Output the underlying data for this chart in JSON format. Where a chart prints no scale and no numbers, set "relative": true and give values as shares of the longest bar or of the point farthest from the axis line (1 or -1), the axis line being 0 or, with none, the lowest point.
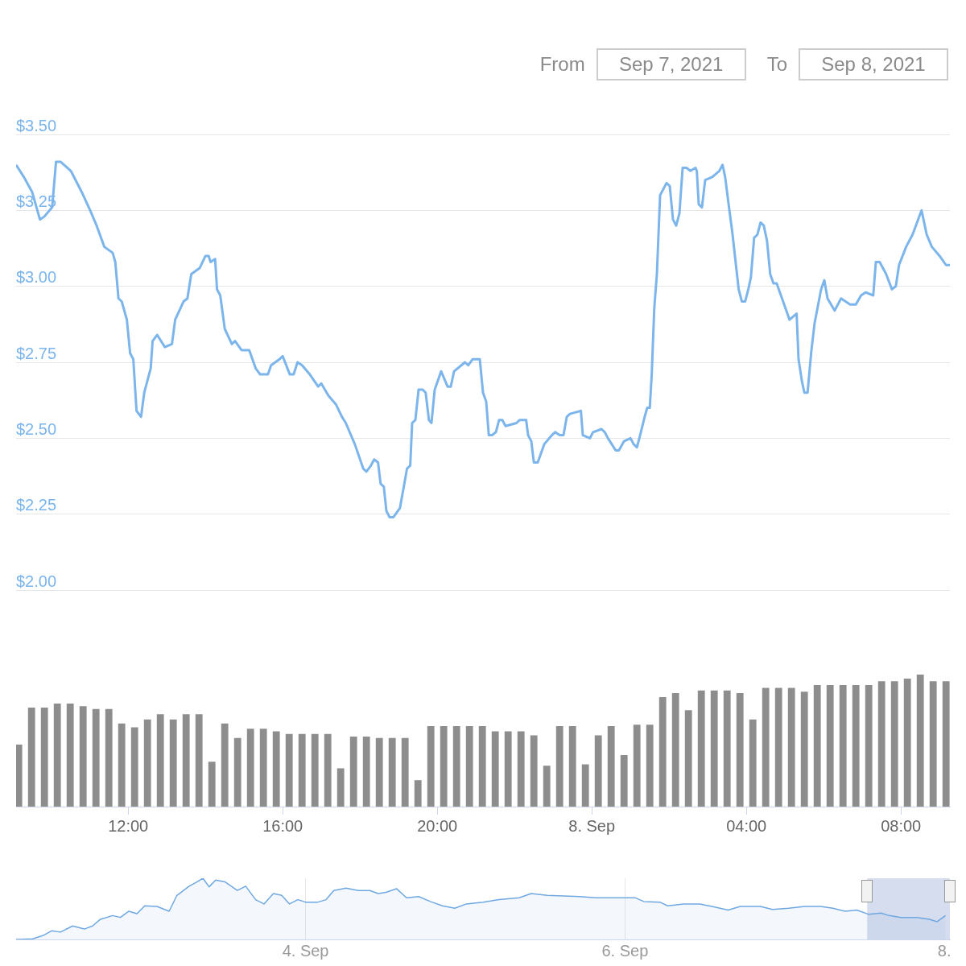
{
  "chart_data": [
    {
      "type": "line",
      "color": "#7cb5ec",
      "ylim": [
        2,
        3.5
      ],
      "xlim": [
        "2021-09-07T09:06",
        "2021-09-08T09:16"
      ],
      "grid": "y",
      "tick_labels": "y",
      "yticks": [
        {
          "value": 2,
          "label": "$2.00"
        },
        {
          "value": 2.25,
          "label": "$2.25"
        },
        {
          "value": 2.5,
          "label": "$2.50"
        },
        {
          "value": 2.75,
          "label": "$2.75"
        },
        {
          "value": 3,
          "label": "$3.00"
        },
        {
          "value": 3.25,
          "label": "$3.25"
        },
        {
          "value": 3.5,
          "label": "$3.50"
        }
      ],
      "annotations": [
        "From",
        "Sep 7, 2021",
        "To",
        "Sep 8, 2021"
      ],
      "x": [
        "2021-09-07T09:06",
        "2021-09-07T09:18",
        "2021-09-07T09:31",
        "2021-09-07T09:43",
        "2021-09-07T09:50",
        "2021-09-07T10:02",
        "2021-09-07T10:08",
        "2021-09-07T10:15",
        "2021-09-07T10:31",
        "2021-09-07T10:48",
        "2021-09-07T11:01",
        "2021-09-07T11:11",
        "2021-09-07T11:23",
        "2021-09-07T11:36",
        "2021-09-07T11:40",
        "2021-09-07T11:45",
        "2021-09-07T11:50",
        "2021-09-07T11:58",
        "2021-09-07T12:03",
        "2021-09-07T12:08",
        "2021-09-07T12:13",
        "2021-09-07T12:20",
        "2021-09-07T12:25",
        "2021-09-07T12:35",
        "2021-09-07T12:38",
        "2021-09-07T12:45",
        "2021-09-07T12:57",
        "2021-09-07T13:08",
        "2021-09-07T13:13",
        "2021-09-07T13:26",
        "2021-09-07T13:32",
        "2021-09-07T13:38",
        "2021-09-07T13:51",
        "2021-09-07T14:00",
        "2021-09-07T14:05",
        "2021-09-07T14:08",
        "2021-09-07T14:15",
        "2021-09-07T14:18",
        "2021-09-07T14:23",
        "2021-09-07T14:30",
        "2021-09-07T14:41",
        "2021-09-07T14:46",
        "2021-09-07T14:56",
        "2021-09-07T15:08",
        "2021-09-07T15:18",
        "2021-09-07T15:25",
        "2021-09-07T15:37",
        "2021-09-07T15:42",
        "2021-09-07T15:55",
        "2021-09-07T16:00",
        "2021-09-07T16:11",
        "2021-09-07T16:17",
        "2021-09-07T16:23",
        "2021-09-07T16:30",
        "2021-09-07T16:42",
        "2021-09-07T16:55",
        "2021-09-07T17:00",
        "2021-09-07T17:11",
        "2021-09-07T17:23",
        "2021-09-07T17:32",
        "2021-09-07T17:38",
        "2021-09-07T17:52",
        "2021-09-07T18:05",
        "2021-09-07T18:10",
        "2021-09-07T18:17",
        "2021-09-07T18:22",
        "2021-09-07T18:28",
        "2021-09-07T18:32",
        "2021-09-07T18:37",
        "2021-09-07T18:41",
        "2021-09-07T18:46",
        "2021-09-07T18:52",
        "2021-09-07T19:02",
        "2021-09-07T19:08",
        "2021-09-07T19:13",
        "2021-09-07T19:18",
        "2021-09-07T19:21",
        "2021-09-07T19:26",
        "2021-09-07T19:31",
        "2021-09-07T19:37",
        "2021-09-07T19:42",
        "2021-09-07T19:47",
        "2021-09-07T19:51",
        "2021-09-07T19:56",
        "2021-09-07T20:06",
        "2021-09-07T20:16",
        "2021-09-07T20:21",
        "2021-09-07T20:26",
        "2021-09-07T20:43",
        "2021-09-07T20:48",
        "2021-09-07T20:55",
        "2021-09-07T21:06",
        "2021-09-07T21:11",
        "2021-09-07T21:16",
        "2021-09-07T21:20",
        "2021-09-07T21:25",
        "2021-09-07T21:31",
        "2021-09-07T21:36",
        "2021-09-07T21:41",
        "2021-09-07T21:46",
        "2021-09-07T22:03",
        "2021-09-07T22:08",
        "2021-09-07T22:18",
        "2021-09-07T22:21",
        "2021-09-07T22:26",
        "2021-09-07T22:30",
        "2021-09-07T22:36",
        "2021-09-07T22:46",
        "2021-09-07T22:58",
        "2021-09-07T23:03",
        "2021-09-07T23:10",
        "2021-09-07T23:16",
        "2021-09-07T23:21",
        "2021-09-07T23:26",
        "2021-09-07T23:43",
        "2021-09-07T23:46",
        "2021-09-07T23:57",
        "2021-09-08T00:02",
        "2021-09-08T00:15",
        "2021-09-08T00:20",
        "2021-09-08T00:25",
        "2021-09-08T00:37",
        "2021-09-08T00:42",
        "2021-09-08T00:50",
        "2021-09-08T01:00",
        "2021-09-08T01:05",
        "2021-09-08T01:10",
        "2021-09-08T01:15",
        "2021-09-08T01:22",
        "2021-09-08T01:26",
        "2021-09-08T01:30",
        "2021-09-08T01:33",
        "2021-09-08T01:37",
        "2021-09-08T01:41",
        "2021-09-08T01:46",
        "2021-09-08T01:56",
        "2021-09-08T02:01",
        "2021-09-08T02:06",
        "2021-09-08T02:11",
        "2021-09-08T02:16",
        "2021-09-08T02:21",
        "2021-09-08T02:27",
        "2021-09-08T02:33",
        "2021-09-08T02:41",
        "2021-09-08T02:43",
        "2021-09-08T02:46",
        "2021-09-08T02:51",
        "2021-09-08T02:56",
        "2021-09-08T03:07",
        "2021-09-08T03:18",
        "2021-09-08T03:23",
        "2021-09-08T03:27",
        "2021-09-08T03:33",
        "2021-09-08T03:38",
        "2021-09-08T03:48",
        "2021-09-08T03:53",
        "2021-09-08T03:58",
        "2021-09-08T04:03",
        "2021-09-08T04:07",
        "2021-09-08T04:12",
        "2021-09-08T04:17",
        "2021-09-08T04:22",
        "2021-09-08T04:27",
        "2021-09-08T04:32",
        "2021-09-08T04:37",
        "2021-09-08T04:42",
        "2021-09-08T04:47",
        "2021-09-08T04:57",
        "2021-09-08T05:07",
        "2021-09-08T05:18",
        "2021-09-08T05:21",
        "2021-09-08T05:26",
        "2021-09-08T05:30",
        "2021-09-08T05:35",
        "2021-09-08T05:41",
        "2021-09-08T05:46",
        "2021-09-08T05:56",
        "2021-09-08T06:01",
        "2021-09-08T06:06",
        "2021-09-08T06:17",
        "2021-09-08T06:27",
        "2021-09-08T06:41",
        "2021-09-08T06:50",
        "2021-09-08T06:58",
        "2021-09-08T07:05",
        "2021-09-08T07:17",
        "2021-09-08T07:21",
        "2021-09-08T07:27",
        "2021-09-08T07:37",
        "2021-09-08T07:46",
        "2021-09-08T07:52",
        "2021-09-08T07:57",
        "2021-09-08T08:08",
        "2021-09-08T08:18",
        "2021-09-08T08:32",
        "2021-09-08T08:40",
        "2021-09-08T08:48",
        "2021-09-08T09:00",
        "2021-09-08T09:10",
        "2021-09-08T09:16"
      ],
      "values": [
        3.4,
        3.36,
        3.31,
        3.22,
        3.23,
        3.26,
        3.41,
        3.41,
        3.38,
        3.31,
        3.25,
        3.2,
        3.13,
        3.11,
        3.08,
        2.96,
        2.95,
        2.89,
        2.78,
        2.76,
        2.59,
        2.57,
        2.65,
        2.73,
        2.82,
        2.84,
        2.8,
        2.81,
        2.89,
        2.95,
        2.96,
        3.04,
        3.06,
        3.1,
        3.1,
        3.08,
        3.09,
        2.99,
        2.97,
        2.86,
        2.81,
        2.82,
        2.79,
        2.79,
        2.73,
        2.71,
        2.71,
        2.74,
        2.76,
        2.77,
        2.71,
        2.71,
        2.75,
        2.74,
        2.71,
        2.67,
        2.68,
        2.64,
        2.61,
        2.57,
        2.55,
        2.48,
        2.4,
        2.39,
        2.41,
        2.43,
        2.42,
        2.35,
        2.34,
        2.26,
        2.24,
        2.24,
        2.27,
        2.34,
        2.4,
        2.41,
        2.55,
        2.56,
        2.66,
        2.66,
        2.65,
        2.56,
        2.55,
        2.66,
        2.72,
        2.67,
        2.67,
        2.72,
        2.75,
        2.74,
        2.76,
        2.76,
        2.65,
        2.62,
        2.51,
        2.51,
        2.52,
        2.56,
        2.56,
        2.54,
        2.55,
        2.56,
        2.56,
        2.51,
        2.49,
        2.42,
        2.42,
        2.48,
        2.51,
        2.52,
        2.51,
        2.51,
        2.57,
        2.58,
        2.59,
        2.51,
        2.5,
        2.52,
        2.53,
        2.52,
        2.5,
        2.46,
        2.46,
        2.49,
        2.5,
        2.48,
        2.47,
        2.51,
        2.57,
        2.6,
        2.6,
        2.71,
        2.93,
        3.04,
        3.3,
        3.34,
        3.33,
        3.22,
        3.2,
        3.24,
        3.39,
        3.39,
        3.38,
        3.39,
        3.38,
        3.27,
        3.26,
        3.35,
        3.36,
        3.38,
        3.4,
        3.36,
        3.26,
        3.18,
        2.99,
        2.95,
        2.95,
        2.99,
        3.03,
        3.16,
        3.17,
        3.21,
        3.2,
        3.15,
        3.04,
        3.01,
        3.01,
        2.95,
        2.89,
        2.91,
        2.76,
        2.69,
        2.65,
        2.65,
        2.79,
        2.88,
        2.99,
        3.02,
        2.96,
        2.92,
        2.96,
        2.94,
        2.94,
        2.97,
        2.98,
        2.97,
        3.08,
        3.08,
        3.04,
        2.99,
        3.0,
        3.07,
        3.13,
        3.17,
        3.25,
        3.17,
        3.13,
        3.1,
        3.07,
        3.07
      ]
    },
    {
      "type": "bar",
      "color": "#8d8d8d",
      "relative": true,
      "xlim": [
        "2021-09-07T09:06",
        "2021-09-08T09:16"
      ],
      "tick_labels": "x",
      "xticks": [
        {
          "value": "2021-09-07T12:00",
          "label": "12:00"
        },
        {
          "value": "2021-09-07T16:00",
          "label": "16:00"
        },
        {
          "value": "2021-09-07T20:00",
          "label": "20:00"
        },
        {
          "value": "2021-09-08",
          "label": "8. Sep"
        },
        {
          "value": "2021-09-08T04:00",
          "label": "04:00"
        },
        {
          "value": "2021-09-08T08:00",
          "label": "08:00"
        }
      ],
      "x": [
        "2021-09-07T09:10",
        "2021-09-07T09:30",
        "2021-09-07T09:50",
        "2021-09-07T10:10",
        "2021-09-07T10:30",
        "2021-09-07T10:50",
        "2021-09-07T11:10",
        "2021-09-07T11:30",
        "2021-09-07T11:50",
        "2021-09-07T12:10",
        "2021-09-07T12:30",
        "2021-09-07T12:50",
        "2021-09-07T13:10",
        "2021-09-07T13:30",
        "2021-09-07T13:50",
        "2021-09-07T14:10",
        "2021-09-07T14:30",
        "2021-09-07T14:50",
        "2021-09-07T15:10",
        "2021-09-07T15:30",
        "2021-09-07T15:50",
        "2021-09-07T16:10",
        "2021-09-07T16:30",
        "2021-09-07T16:50",
        "2021-09-07T17:10",
        "2021-09-07T17:30",
        "2021-09-07T17:50",
        "2021-09-07T18:10",
        "2021-09-07T18:30",
        "2021-09-07T18:50",
        "2021-09-07T19:10",
        "2021-09-07T19:30",
        "2021-09-07T19:50",
        "2021-09-07T20:10",
        "2021-09-07T20:30",
        "2021-09-07T20:50",
        "2021-09-07T21:10",
        "2021-09-07T21:30",
        "2021-09-07T21:50",
        "2021-09-07T22:10",
        "2021-09-07T22:30",
        "2021-09-07T22:50",
        "2021-09-07T23:10",
        "2021-09-07T23:30",
        "2021-09-07T23:50",
        "2021-09-08T00:10",
        "2021-09-08T00:30",
        "2021-09-08T00:50",
        "2021-09-08T01:10",
        "2021-09-08T01:30",
        "2021-09-08T01:50",
        "2021-09-08T02:10",
        "2021-09-08T02:30",
        "2021-09-08T02:50",
        "2021-09-08T03:10",
        "2021-09-08T03:30",
        "2021-09-08T03:50",
        "2021-09-08T04:10",
        "2021-09-08T04:30",
        "2021-09-08T04:50",
        "2021-09-08T05:10",
        "2021-09-08T05:30",
        "2021-09-08T05:50",
        "2021-09-08T06:10",
        "2021-09-08T06:30",
        "2021-09-08T06:50",
        "2021-09-08T07:10",
        "2021-09-08T07:30",
        "2021-09-08T07:50",
        "2021-09-08T08:10",
        "2021-09-08T08:30",
        "2021-09-08T08:50",
        "2021-09-08T09:10"
      ],
      "values": [
        0.47,
        0.75,
        0.75,
        0.78,
        0.78,
        0.76,
        0.74,
        0.74,
        0.63,
        0.6,
        0.66,
        0.7,
        0.66,
        0.7,
        0.7,
        0.34,
        0.63,
        0.52,
        0.59,
        0.59,
        0.57,
        0.55,
        0.55,
        0.55,
        0.55,
        0.29,
        0.53,
        0.53,
        0.52,
        0.52,
        0.52,
        0.2,
        0.61,
        0.61,
        0.61,
        0.61,
        0.61,
        0.57,
        0.57,
        0.57,
        0.54,
        0.31,
        0.61,
        0.61,
        0.32,
        0.54,
        0.61,
        0.39,
        0.62,
        0.62,
        0.83,
        0.86,
        0.73,
        0.88,
        0.88,
        0.88,
        0.86,
        0.66,
        0.9,
        0.9,
        0.9,
        0.87,
        0.92,
        0.92,
        0.92,
        0.92,
        0.92,
        0.95,
        0.95,
        0.97,
        1,
        0.95,
        0.95
      ]
    },
    {
      "type": "area",
      "color": "#6fa8e0",
      "relative": true,
      "xlim": [
        "2021-09-02T04:30",
        "2021-09-08T00:50"
      ],
      "grid": "x",
      "tick_labels": "x",
      "xticks": [
        {
          "value": "2021-09-04",
          "label": "4. Sep"
        },
        {
          "value": "2021-09-06",
          "label": "6. Sep"
        },
        {
          "value": "2021-09-08",
          "label": "8."
        }
      ],
      "bands": [
        {
          "axis": "x",
          "from": "2021-09-07T12:24",
          "to": "2021-09-08T00:50",
          "color": "#d5ddee"
        }
      ],
      "x": [
        "2021-09-02T04:30",
        "2021-09-02T07:00",
        "2021-09-02T08:40",
        "2021-09-02T09:50",
        "2021-09-02T11:10",
        "2021-09-02T13:00",
        "2021-09-02T14:45",
        "2021-09-02T16:00",
        "2021-09-02T17:10",
        "2021-09-02T19:00",
        "2021-09-02T20:10",
        "2021-09-02T21:25",
        "2021-09-02T22:40",
        "2021-09-02T23:50",
        "2021-09-03T01:40",
        "2021-09-03T03:30",
        "2021-09-03T04:40",
        "2021-09-03T06:30",
        "2021-09-03T07:40",
        "2021-09-03T08:35",
        "2021-09-03T09:30",
        "2021-09-03T10:30",
        "2021-09-03T11:55",
        "2021-09-03T13:45",
        "2021-09-03T15:00",
        "2021-09-03T16:30",
        "2021-09-03T17:45",
        "2021-09-03T19:10",
        "2021-09-03T20:25",
        "2021-09-03T21:35",
        "2021-09-03T22:50",
        "2021-09-04T00:00",
        "2021-09-04T01:50",
        "2021-09-04T03:05",
        "2021-09-04T04:15",
        "2021-09-04T06:05",
        "2021-09-04T07:55",
        "2021-09-04T09:40",
        "2021-09-04T10:55",
        "2021-09-04T12:05",
        "2021-09-04T13:40",
        "2021-09-04T15:10",
        "2021-09-04T17:00",
        "2021-09-04T18:45",
        "2021-09-04T20:35",
        "2021-09-04T22:25",
        "2021-09-05T00:10",
        "2021-09-05T02:40",
        "2021-09-05T05:05",
        "2021-09-05T08:05",
        "2021-09-05T09:55",
        "2021-09-05T12:20",
        "2021-09-05T14:45",
        "2021-09-05T17:10",
        "2021-09-05T19:35",
        "2021-09-05T22:00",
        "2021-09-06T01:35",
        "2021-09-06T02:50",
        "2021-09-06T05:15",
        "2021-09-06T06:25",
        "2021-09-06T08:50",
        "2021-09-06T11:15",
        "2021-09-06T13:05",
        "2021-09-06T15:30",
        "2021-09-06T17:20",
        "2021-09-06T20:20",
        "2021-09-06T22:10",
        "2021-09-07T00:35",
        "2021-09-07T03:00",
        "2021-09-07T05:25",
        "2021-09-07T07:15",
        "2021-09-07T09:05",
        "2021-09-07T10:50",
        "2021-09-07T12:40",
        "2021-09-07T14:30",
        "2021-09-07T15:40",
        "2021-09-07T17:30",
        "2021-09-07T19:55",
        "2021-09-07T21:45",
        "2021-09-07T22:55",
        "2021-09-08T00:10"
      ],
      "values": [
        0,
        0.01,
        0.07,
        0.14,
        0.12,
        0.22,
        0.17,
        0.22,
        0.33,
        0.39,
        0.36,
        0.46,
        0.42,
        0.55,
        0.54,
        0.46,
        0.72,
        0.87,
        0.94,
        1,
        0.86,
        0.97,
        0.94,
        0.8,
        0.87,
        0.65,
        0.58,
        0.75,
        0.72,
        0.58,
        0.65,
        0.61,
        0.61,
        0.65,
        0.8,
        0.84,
        0.8,
        0.8,
        0.75,
        0.77,
        0.83,
        0.68,
        0.7,
        0.62,
        0.55,
        0.51,
        0.58,
        0.61,
        0.65,
        0.68,
        0.75,
        0.72,
        0.71,
        0.7,
        0.68,
        0.68,
        0.68,
        0.62,
        0.61,
        0.55,
        0.58,
        0.58,
        0.54,
        0.48,
        0.54,
        0.54,
        0.49,
        0.51,
        0.54,
        0.54,
        0.51,
        0.46,
        0.48,
        0.41,
        0.43,
        0.39,
        0.36,
        0.36,
        0.33,
        0.29,
        0.39
      ]
    }
  ]
}
